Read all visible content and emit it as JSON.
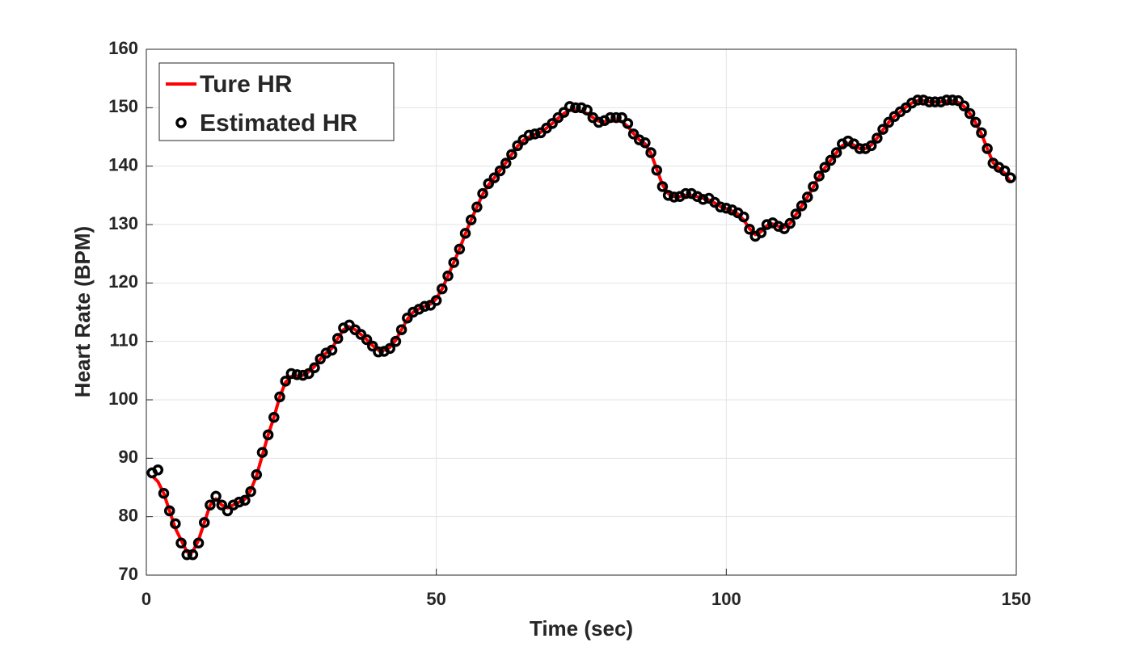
{
  "chart_data": {
    "type": "line",
    "xlabel": "Time (sec)",
    "ylabel": "Heart Rate (BPM)",
    "x": [
      1,
      2,
      3,
      4,
      5,
      6,
      7,
      8,
      9,
      10,
      11,
      12,
      13,
      14,
      15,
      16,
      17,
      18,
      19,
      20,
      21,
      22,
      23,
      24,
      25,
      26,
      27,
      28,
      29,
      30,
      31,
      32,
      33,
      34,
      35,
      36,
      37,
      38,
      39,
      40,
      41,
      42,
      43,
      44,
      45,
      46,
      47,
      48,
      49,
      50,
      51,
      52,
      53,
      54,
      55,
      56,
      57,
      58,
      59,
      60,
      61,
      62,
      63,
      64,
      65,
      66,
      67,
      68,
      69,
      70,
      71,
      72,
      73,
      74,
      75,
      76,
      77,
      78,
      79,
      80,
      81,
      82,
      83,
      84,
      85,
      86,
      87,
      88,
      89,
      90,
      91,
      92,
      93,
      94,
      95,
      96,
      97,
      98,
      99,
      100,
      101,
      102,
      103,
      104,
      105,
      106,
      107,
      108,
      109,
      110,
      111,
      112,
      113,
      114,
      115,
      116,
      117,
      118,
      119,
      120,
      121,
      122,
      123,
      124,
      125,
      126,
      127,
      128,
      129,
      130,
      131,
      132,
      133,
      134,
      135,
      136,
      137,
      138,
      139,
      140,
      141,
      142,
      143,
      144,
      145,
      146,
      147,
      148,
      149
    ],
    "series": [
      {
        "name": "Ture HR",
        "color": "#ff0000",
        "style": "line",
        "values": [
          87,
          86,
          84,
          81,
          78,
          76,
          74,
          74,
          76,
          79,
          82,
          83,
          82,
          81.5,
          82,
          82.5,
          83,
          84.5,
          87,
          90.5,
          94,
          97,
          100.5,
          103,
          104,
          104,
          104.2,
          104.8,
          105.7,
          107,
          108,
          108.8,
          110.5,
          112,
          112.5,
          112,
          111.2,
          110.3,
          109.3,
          108.5,
          108.5,
          109,
          110.2,
          112,
          113.8,
          115,
          115.6,
          116,
          116.4,
          117.3,
          119,
          121.2,
          123.5,
          125.8,
          128.4,
          130.8,
          133,
          135.2,
          136.8,
          138,
          139.3,
          140.6,
          142,
          143.4,
          144.4,
          145,
          145.4,
          145.8,
          146.5,
          147.3,
          148.2,
          149,
          149.6,
          149.6,
          149.4,
          149,
          148.3,
          147.7,
          147.6,
          147.8,
          147.9,
          147.6,
          146.8,
          145.6,
          144.5,
          143.8,
          142.2,
          139.5,
          136.8,
          135.3,
          134.8,
          134.8,
          135,
          135,
          134.8,
          134.5,
          134.2,
          133.7,
          133.1,
          132.7,
          132.3,
          131.8,
          130.8,
          129.3,
          128.3,
          128.8,
          129.8,
          130.1,
          129.7,
          129.5,
          130.2,
          131.7,
          133.2,
          134.7,
          136.4,
          138.2,
          139.7,
          141,
          142.3,
          143.5,
          143.9,
          143.6,
          143,
          143,
          143.6,
          144.8,
          146.2,
          147.5,
          148.5,
          149.3,
          150.1,
          150.8,
          151.2,
          151.2,
          151,
          151,
          151,
          151.1,
          151.1,
          150.9,
          150.2,
          149,
          147.4,
          145.5,
          143,
          140.6,
          139.6,
          138.8,
          137.3
        ]
      },
      {
        "name": "Estimated HR",
        "color": "#000000",
        "style": "markers",
        "values": [
          87.5,
          88,
          84,
          81,
          78.8,
          75.5,
          73.5,
          73.5,
          75.5,
          79,
          82,
          83.5,
          82,
          81,
          82,
          82.5,
          82.8,
          84.3,
          87.2,
          91,
          94,
          97,
          100.5,
          103.2,
          104.5,
          104.3,
          104.2,
          104.5,
          105.5,
          107,
          108,
          108.5,
          110.5,
          112.3,
          112.8,
          112,
          111.2,
          110.3,
          109.2,
          108.2,
          108.3,
          108.8,
          110,
          112,
          114,
          115,
          115.5,
          116,
          116.2,
          117,
          119,
          121.2,
          123.5,
          125.8,
          128.5,
          130.8,
          133,
          135.3,
          137,
          138,
          139.2,
          140.5,
          142,
          143.5,
          144.5,
          145.3,
          145.5,
          145.7,
          146.5,
          147.3,
          148.3,
          149.2,
          150.2,
          150,
          150,
          149.6,
          148.3,
          147.5,
          147.8,
          148.3,
          148.3,
          148.3,
          147.3,
          145.5,
          144.5,
          144,
          142.3,
          139.3,
          136.5,
          135,
          134.7,
          134.8,
          135.3,
          135.3,
          134.8,
          134.3,
          134.5,
          133.8,
          133,
          132.8,
          132.5,
          132,
          131.3,
          129.2,
          128,
          128.6,
          130,
          130.3,
          129.7,
          129.3,
          130.2,
          131.8,
          133.2,
          134.7,
          136.5,
          138.3,
          139.8,
          141,
          142.3,
          143.8,
          144.3,
          143.8,
          143,
          143,
          143.5,
          144.8,
          146.3,
          147.5,
          148.5,
          149.3,
          150,
          150.8,
          151.3,
          151.3,
          151,
          151,
          151,
          151.3,
          151.3,
          151.2,
          150.3,
          149,
          147.5,
          145.7,
          143,
          140.5,
          139.8,
          139.2,
          138
        ]
      }
    ],
    "xlim": [
      0,
      150
    ],
    "xticks": [
      0,
      50,
      100,
      150
    ],
    "ylim": [
      70,
      160
    ],
    "yticks": [
      70,
      80,
      90,
      100,
      110,
      120,
      130,
      140,
      150,
      160
    ],
    "grid": true,
    "legend": "upper-left"
  }
}
